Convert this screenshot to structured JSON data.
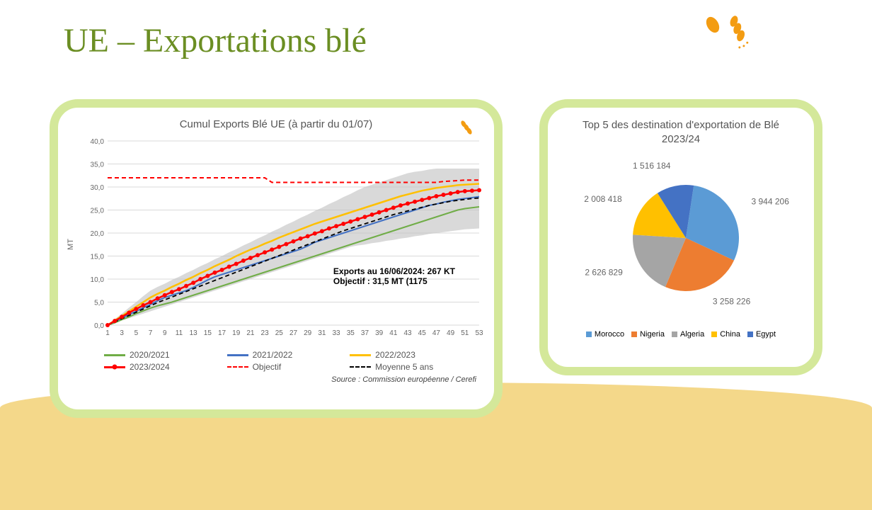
{
  "page": {
    "title": "UE – Exportations blé"
  },
  "line_chart": {
    "type": "line",
    "title": "Cumul Exports Blé UE (à partir du 01/07)",
    "y_axis_label": "MT",
    "ylim": [
      0,
      40
    ],
    "ytick_step": 5,
    "y_ticks": [
      "0,0",
      "5,0",
      "10,0",
      "15,0",
      "20,0",
      "25,0",
      "30,0",
      "35,0",
      "40,0"
    ],
    "x_ticks": [
      1,
      3,
      5,
      7,
      9,
      11,
      13,
      15,
      17,
      19,
      21,
      23,
      25,
      27,
      29,
      31,
      33,
      35,
      37,
      39,
      41,
      43,
      45,
      47,
      49,
      51,
      53
    ],
    "background_color": "#ffffff",
    "grid_color": "#d9d9d9",
    "band_color": "#bfbfbf",
    "band_upper": [
      0,
      1.3,
      2.5,
      3.8,
      5,
      6.3,
      7.5,
      8.3,
      9,
      9.8,
      10.5,
      11.3,
      12,
      12.8,
      13.5,
      14.3,
      15,
      15.8,
      16.5,
      17.3,
      18,
      18.8,
      19.5,
      20.3,
      21,
      21.8,
      22.5,
      23.3,
      24,
      24.8,
      25.5,
      26.3,
      27,
      27.8,
      28.5,
      29.3,
      30,
      30.5,
      31,
      31.5,
      32,
      32.5,
      33,
      33.3,
      33.5,
      33.8,
      34,
      34,
      34,
      34,
      34,
      34,
      34
    ],
    "band_lower": [
      0,
      0.5,
      1,
      1.5,
      2,
      2.5,
      3,
      3.5,
      4,
      4.5,
      5,
      5.5,
      6,
      6.5,
      7,
      7.5,
      8,
      8.5,
      9,
      9.5,
      10,
      10.5,
      11,
      11.5,
      12,
      12.5,
      13,
      13.5,
      14,
      14.5,
      15,
      15.5,
      16,
      16.5,
      17,
      17.3,
      17.5,
      17.8,
      18,
      18.3,
      18.5,
      18.8,
      19,
      19.3,
      19.5,
      19.8,
      20,
      20.2,
      20.4,
      20.6,
      20.8,
      20.9,
      21
    ],
    "series": {
      "s2020_2021": {
        "label": "2020/2021",
        "color": "#70ad47",
        "width": 2,
        "style": "solid",
        "data": [
          0,
          0.5,
          1.2,
          1.8,
          2.5,
          3.1,
          3.7,
          4.2,
          4.6,
          5,
          5.5,
          6,
          6.5,
          7,
          7.5,
          8,
          8.5,
          9,
          9.5,
          10,
          10.5,
          11,
          11.5,
          12,
          12.5,
          13,
          13.5,
          14,
          14.5,
          15,
          15.5,
          16,
          16.5,
          17,
          17.5,
          18,
          18.5,
          19,
          19.5,
          20,
          20.5,
          21,
          21.5,
          22,
          22.5,
          23,
          23.5,
          24,
          24.5,
          25,
          25.3,
          25.5,
          25.7
        ]
      },
      "s2021_2022": {
        "label": "2021/2022",
        "color": "#4472c4",
        "width": 2,
        "style": "solid",
        "data": [
          0,
          0.8,
          1.5,
          2.3,
          3,
          3.8,
          4.5,
          5.3,
          6,
          6.5,
          7,
          7.5,
          8.2,
          9,
          9.8,
          10.5,
          11,
          11.5,
          12,
          12.5,
          13,
          13.5,
          14,
          14.5,
          15,
          15.5,
          16,
          16.5,
          17.2,
          18,
          18.5,
          19,
          19.5,
          20,
          20.5,
          21,
          21.5,
          22,
          22.5,
          23,
          23.5,
          24,
          24.5,
          25,
          25.5,
          26,
          26.3,
          26.7,
          27,
          27.3,
          27.5,
          27.7,
          27.9
        ]
      },
      "s2022_2023": {
        "label": "2022/2023",
        "color": "#ffc000",
        "width": 2.5,
        "style": "solid",
        "data": [
          0,
          1,
          2,
          3,
          4,
          5,
          6,
          6.8,
          7.5,
          8.3,
          9,
          9.8,
          10.5,
          11.3,
          12,
          12.8,
          13.5,
          14.2,
          15,
          15.7,
          16.4,
          17,
          17.7,
          18.3,
          19,
          19.6,
          20.2,
          20.8,
          21.4,
          22,
          22.5,
          23,
          23.5,
          24,
          24.5,
          25,
          25.5,
          26,
          26.5,
          27,
          27.5,
          28,
          28.4,
          28.8,
          29.2,
          29.5,
          29.8,
          30,
          30.2,
          30.4,
          30.5,
          30.6,
          30.7
        ]
      },
      "s2023_2024": {
        "label": "2023/2024",
        "color": "#ff0000",
        "width": 2.5,
        "style": "solid",
        "marker": true,
        "data": [
          0,
          0.9,
          1.8,
          2.7,
          3.5,
          4.3,
          5,
          5.8,
          6.5,
          7.2,
          7.8,
          8.5,
          9.2,
          10,
          10.7,
          11.4,
          12,
          12.7,
          13.3,
          14,
          14.6,
          15.2,
          15.8,
          16.4,
          17,
          17.6,
          18.2,
          18.8,
          19.3,
          19.9,
          20.4,
          21,
          21.5,
          22,
          22.5,
          23,
          23.5,
          24,
          24.5,
          25,
          25.5,
          26,
          26.4,
          26.8,
          27.2,
          27.6,
          28,
          28.3,
          28.6,
          28.9,
          29.1,
          29.2,
          29.3
        ]
      },
      "objectif": {
        "label": "Objectif",
        "color": "#ff0000",
        "width": 2,
        "style": "dashed",
        "data": [
          32,
          32,
          32,
          32,
          32,
          32,
          32,
          32,
          32,
          32,
          32,
          32,
          32,
          32,
          32,
          32,
          32,
          32,
          32,
          32,
          32,
          32,
          32,
          31,
          31,
          31,
          31,
          31,
          31,
          31,
          31,
          31,
          31,
          31,
          31,
          31,
          31,
          31,
          31,
          31,
          31,
          31,
          31,
          31,
          31,
          31,
          31,
          31.2,
          31.3,
          31.4,
          31.5,
          31.5,
          31.5
        ]
      },
      "moyenne5ans": {
        "label": "Moyenne 5 ans",
        "color": "#000000",
        "width": 1.8,
        "style": "dashed",
        "data": [
          0,
          0.7,
          1.4,
          2.1,
          2.8,
          3.5,
          4.2,
          4.9,
          5.5,
          6.1,
          6.7,
          7.3,
          7.9,
          8.5,
          9.1,
          9.7,
          10.3,
          10.9,
          11.5,
          12.1,
          12.7,
          13.3,
          13.9,
          14.5,
          15.1,
          15.7,
          16.3,
          16.9,
          17.5,
          18.1,
          18.7,
          19.3,
          19.9,
          20.5,
          21,
          21.5,
          22,
          22.5,
          23,
          23.5,
          24,
          24.4,
          24.8,
          25.2,
          25.6,
          26,
          26.3,
          26.6,
          26.9,
          27.1,
          27.3,
          27.5,
          27.6
        ]
      }
    },
    "annotations": {
      "exports_line": "Exports au 16/06/2024: 267 KT",
      "objectif_line": "Objectif  : 31,5 MT  (1175"
    },
    "source": "Source : Commission européenne / Cerefi"
  },
  "pie_chart": {
    "type": "pie",
    "title": "Top 5 des destination d'exportation de Blé 2023/24",
    "slices": [
      {
        "label": "Morocco",
        "value": 3944206,
        "display": "3 944 206",
        "color": "#5b9bd5"
      },
      {
        "label": "Nigeria",
        "value": 3258226,
        "display": "3 258 226",
        "color": "#ed7d31"
      },
      {
        "label": "Algeria",
        "value": 2626829,
        "display": "2 626 829",
        "color": "#a5a5a5"
      },
      {
        "label": "China",
        "value": 2008418,
        "display": "2 008 418",
        "color": "#ffc000"
      },
      {
        "label": "Egypt",
        "value": 1516184,
        "display": "1 516 184",
        "color": "#4472c4"
      }
    ]
  }
}
